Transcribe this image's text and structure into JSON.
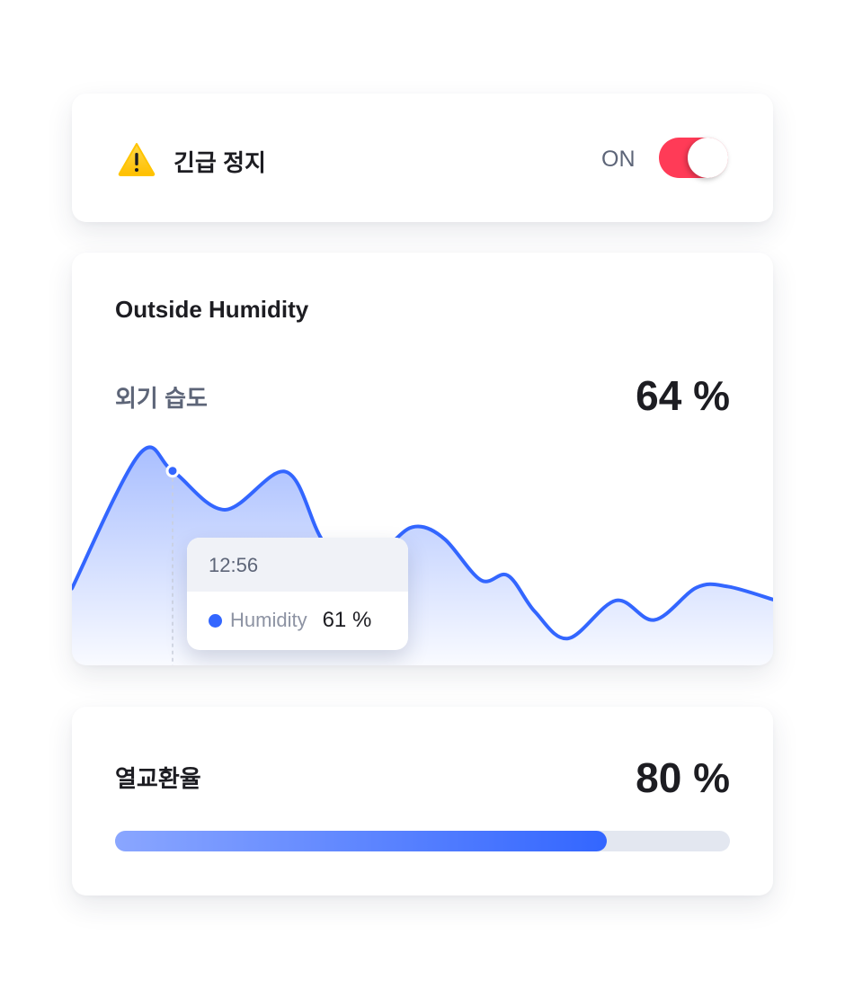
{
  "emergency": {
    "title": "긴급 정지",
    "icon": "warning-icon",
    "state_label": "ON",
    "toggle_on": true,
    "toggle_color": "#ff3b57"
  },
  "humidity": {
    "title": "Outside Humidity",
    "subtitle": "외기 습도",
    "value": "64 %",
    "tooltip": {
      "time": "12:56",
      "series": "Humidity",
      "value": "61 %"
    },
    "chart_data": {
      "type": "area",
      "series": [
        {
          "name": "Humidity",
          "values": [
            48.3,
            62.8,
            61,
            56.8,
            60.9,
            53.6,
            48.7,
            53.6,
            55,
            53.6,
            49.2,
            49.7,
            45.8,
            42.9,
            47,
            44.9,
            48.4,
            48.5,
            47.1
          ]
        }
      ],
      "highlight_index": 2,
      "color": "#3366ff",
      "grid": false
    }
  },
  "heat_exchange": {
    "title": "열교환율",
    "value": "80 %",
    "progress": 80,
    "accent": "#3366ff"
  }
}
